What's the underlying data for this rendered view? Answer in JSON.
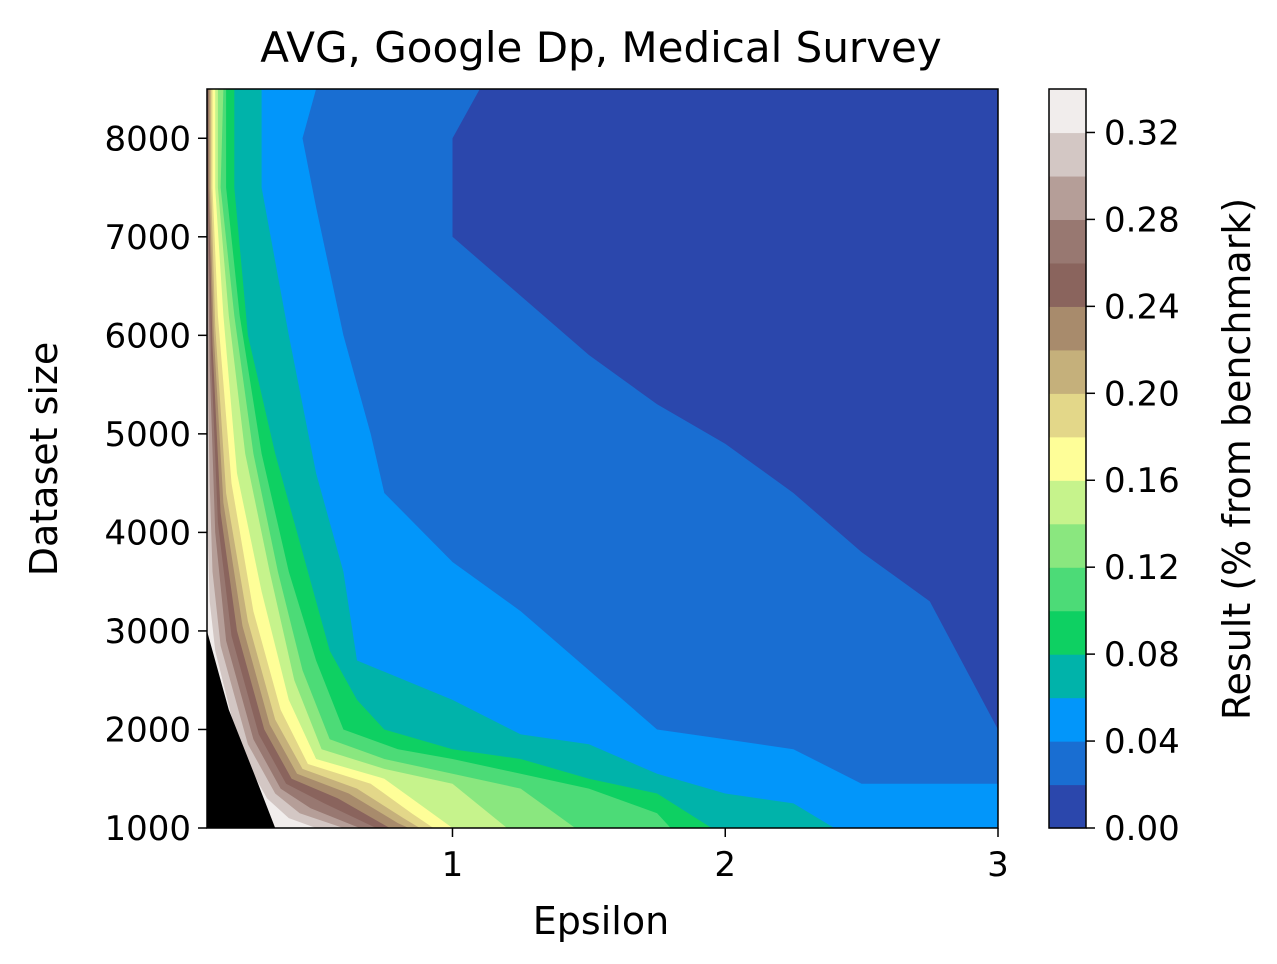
{
  "chart_data": {
    "type": "heatmap",
    "subtype": "filled-contour",
    "title": "AVG, Google Dp, Medical Survey",
    "xlabel": "Epsilon",
    "ylabel": "Dataset size",
    "colorbar_label": "Result (% from benchmark)",
    "xlim": [
      0.1,
      3.0
    ],
    "ylim": [
      1000,
      8500
    ],
    "x_ticks": [
      1,
      2,
      3
    ],
    "x_tick_labels": [
      "1",
      "2",
      "3"
    ],
    "y_ticks": [
      1000,
      2000,
      3000,
      4000,
      5000,
      6000,
      7000,
      8000
    ],
    "y_tick_labels": [
      "1000",
      "2000",
      "3000",
      "4000",
      "5000",
      "6000",
      "7000",
      "8000"
    ],
    "colorbar_ticks": [
      0.0,
      0.04,
      0.08,
      0.12,
      0.16,
      0.2,
      0.24,
      0.28,
      0.32
    ],
    "colorbar_tick_labels": [
      "0.00",
      "0.04",
      "0.08",
      "0.12",
      "0.16",
      "0.20",
      "0.24",
      "0.28",
      "0.32"
    ],
    "levels": [
      0.0,
      0.02,
      0.04,
      0.06,
      0.08,
      0.1,
      0.12,
      0.14,
      0.16,
      0.18,
      0.2,
      0.22,
      0.24,
      0.26,
      0.28,
      0.3,
      0.32,
      0.34
    ],
    "colors": [
      "#2b47ac",
      "#196ed2",
      "#0296fa",
      "#00b3aa",
      "#0ed062",
      "#4cdb77",
      "#8ae77f",
      "#c6f38c",
      "#fefe98",
      "#e3d789",
      "#c5b07b",
      "#a88b6c",
      "#8a645d",
      "#987871",
      "#b59e98",
      "#d3c7c4",
      "#f1edec"
    ],
    "boundaries": [
      {
        "level": 0.02,
        "points": [
          [
            1.1,
            8500
          ],
          [
            1.0,
            8000
          ],
          [
            1.0,
            7000
          ],
          [
            1.25,
            6400
          ],
          [
            1.5,
            5800
          ],
          [
            1.75,
            5300
          ],
          [
            2.0,
            4900
          ],
          [
            2.25,
            4400
          ],
          [
            2.5,
            3800
          ],
          [
            2.75,
            3300
          ],
          [
            3.0,
            2000
          ]
        ]
      },
      {
        "level": 0.04,
        "points": [
          [
            0.5,
            8500
          ],
          [
            0.45,
            8000
          ],
          [
            0.5,
            7300
          ],
          [
            0.6,
            6000
          ],
          [
            0.7,
            5000
          ],
          [
            0.75,
            4400
          ],
          [
            1.0,
            3700
          ],
          [
            1.25,
            3200
          ],
          [
            1.5,
            2600
          ],
          [
            1.75,
            2000
          ],
          [
            2.0,
            1900
          ],
          [
            2.25,
            1800
          ],
          [
            2.5,
            1450
          ],
          [
            3.0,
            1450
          ]
        ]
      },
      {
        "level": 0.06,
        "points": [
          [
            0.3,
            8500
          ],
          [
            0.3,
            7500
          ],
          [
            0.4,
            6000
          ],
          [
            0.5,
            4600
          ],
          [
            0.6,
            3600
          ],
          [
            0.65,
            2700
          ],
          [
            1.0,
            2300
          ],
          [
            1.25,
            1950
          ],
          [
            1.5,
            1850
          ],
          [
            1.75,
            1550
          ],
          [
            2.0,
            1350
          ],
          [
            2.25,
            1250
          ],
          [
            2.4,
            1000
          ]
        ]
      },
      {
        "level": 0.08,
        "points": [
          [
            0.2,
            8500
          ],
          [
            0.2,
            7500
          ],
          [
            0.25,
            6000
          ],
          [
            0.35,
            4800
          ],
          [
            0.45,
            3800
          ],
          [
            0.55,
            2800
          ],
          [
            0.65,
            2300
          ],
          [
            0.75,
            2000
          ],
          [
            1.0,
            1800
          ],
          [
            1.25,
            1700
          ],
          [
            1.5,
            1500
          ],
          [
            1.75,
            1350
          ],
          [
            1.95,
            1000
          ]
        ]
      },
      {
        "level": 0.1,
        "points": [
          [
            0.17,
            8500
          ],
          [
            0.17,
            7500
          ],
          [
            0.22,
            6200
          ],
          [
            0.3,
            4800
          ],
          [
            0.4,
            3600
          ],
          [
            0.5,
            2700
          ],
          [
            0.6,
            2000
          ],
          [
            0.8,
            1800
          ],
          [
            1.0,
            1700
          ],
          [
            1.25,
            1550
          ],
          [
            1.5,
            1400
          ],
          [
            1.75,
            1150
          ],
          [
            1.8,
            1000
          ]
        ]
      },
      {
        "level": 0.12,
        "points": [
          [
            0.16,
            8500
          ],
          [
            0.15,
            7500
          ],
          [
            0.2,
            6200
          ],
          [
            0.27,
            4800
          ],
          [
            0.36,
            3600
          ],
          [
            0.45,
            2600
          ],
          [
            0.55,
            1900
          ],
          [
            0.75,
            1700
          ],
          [
            1.0,
            1550
          ],
          [
            1.25,
            1400
          ],
          [
            1.45,
            1000
          ]
        ]
      },
      {
        "level": 0.14,
        "points": [
          [
            0.14,
            8500
          ],
          [
            0.14,
            7500
          ],
          [
            0.18,
            6200
          ],
          [
            0.24,
            4800
          ],
          [
            0.33,
            3600
          ],
          [
            0.42,
            2500
          ],
          [
            0.52,
            1800
          ],
          [
            0.75,
            1600
          ],
          [
            1.0,
            1450
          ],
          [
            1.2,
            1000
          ]
        ]
      },
      {
        "level": 0.16,
        "points": [
          [
            0.13,
            8500
          ],
          [
            0.13,
            7500
          ],
          [
            0.16,
            6200
          ],
          [
            0.21,
            4600
          ],
          [
            0.3,
            3400
          ],
          [
            0.4,
            2300
          ],
          [
            0.5,
            1700
          ],
          [
            0.75,
            1500
          ],
          [
            0.9,
            1200
          ],
          [
            1.0,
            1000
          ]
        ]
      },
      {
        "level": 0.18,
        "points": [
          [
            0.12,
            8500
          ],
          [
            0.12,
            7500
          ],
          [
            0.14,
            6200
          ],
          [
            0.19,
            4500
          ],
          [
            0.27,
            3200
          ],
          [
            0.37,
            2200
          ],
          [
            0.47,
            1650
          ],
          [
            0.7,
            1450
          ],
          [
            0.85,
            1150
          ],
          [
            0.93,
            1000
          ]
        ]
      },
      {
        "level": 0.2,
        "points": [
          [
            0.115,
            8500
          ],
          [
            0.115,
            7500
          ],
          [
            0.13,
            6100
          ],
          [
            0.17,
            4400
          ],
          [
            0.25,
            3100
          ],
          [
            0.35,
            2100
          ],
          [
            0.45,
            1600
          ],
          [
            0.65,
            1400
          ],
          [
            0.82,
            1100
          ],
          [
            0.88,
            1000
          ]
        ]
      },
      {
        "level": 0.22,
        "points": [
          [
            0.11,
            8500
          ],
          [
            0.11,
            7500
          ],
          [
            0.125,
            6000
          ],
          [
            0.16,
            4300
          ],
          [
            0.23,
            3050
          ],
          [
            0.33,
            2050
          ],
          [
            0.43,
            1550
          ],
          [
            0.62,
            1350
          ],
          [
            0.8,
            1050
          ],
          [
            0.84,
            1000
          ]
        ]
      },
      {
        "level": 0.24,
        "points": [
          [
            0.106,
            8500
          ],
          [
            0.106,
            7500
          ],
          [
            0.12,
            5900
          ],
          [
            0.15,
            4200
          ],
          [
            0.21,
            3000
          ],
          [
            0.31,
            2000
          ],
          [
            0.41,
            1500
          ],
          [
            0.58,
            1300
          ],
          [
            0.77,
            1000
          ]
        ]
      },
      {
        "level": 0.26,
        "points": [
          [
            0.103,
            8500
          ],
          [
            0.103,
            7500
          ],
          [
            0.115,
            5800
          ],
          [
            0.14,
            4100
          ],
          [
            0.19,
            2950
          ],
          [
            0.29,
            1950
          ],
          [
            0.39,
            1450
          ],
          [
            0.53,
            1250
          ],
          [
            0.72,
            1000
          ]
        ]
      },
      {
        "level": 0.28,
        "points": [
          [
            0.1,
            8500
          ],
          [
            0.1,
            7500
          ],
          [
            0.11,
            5700
          ],
          [
            0.13,
            4000
          ],
          [
            0.17,
            2900
          ],
          [
            0.27,
            1900
          ],
          [
            0.37,
            1400
          ],
          [
            0.48,
            1200
          ],
          [
            0.66,
            1000
          ]
        ]
      },
      {
        "level": 0.3,
        "points": [
          [
            0.1,
            6000
          ],
          [
            0.11,
            4500
          ],
          [
            0.12,
            3600
          ],
          [
            0.15,
            2850
          ],
          [
            0.25,
            1850
          ],
          [
            0.35,
            1350
          ],
          [
            0.44,
            1150
          ],
          [
            0.6,
            1000
          ]
        ]
      },
      {
        "level": 0.32,
        "points": [
          [
            0.1,
            4200
          ],
          [
            0.11,
            3300
          ],
          [
            0.13,
            2800
          ],
          [
            0.22,
            1800
          ],
          [
            0.32,
            1300
          ],
          [
            0.4,
            1100
          ],
          [
            0.5,
            1000
          ]
        ]
      },
      {
        "level": 0.34,
        "points": [
          [
            0.1,
            3000
          ],
          [
            0.18,
            2200
          ],
          [
            0.28,
            1500
          ],
          [
            0.35,
            1000
          ]
        ]
      }
    ]
  }
}
